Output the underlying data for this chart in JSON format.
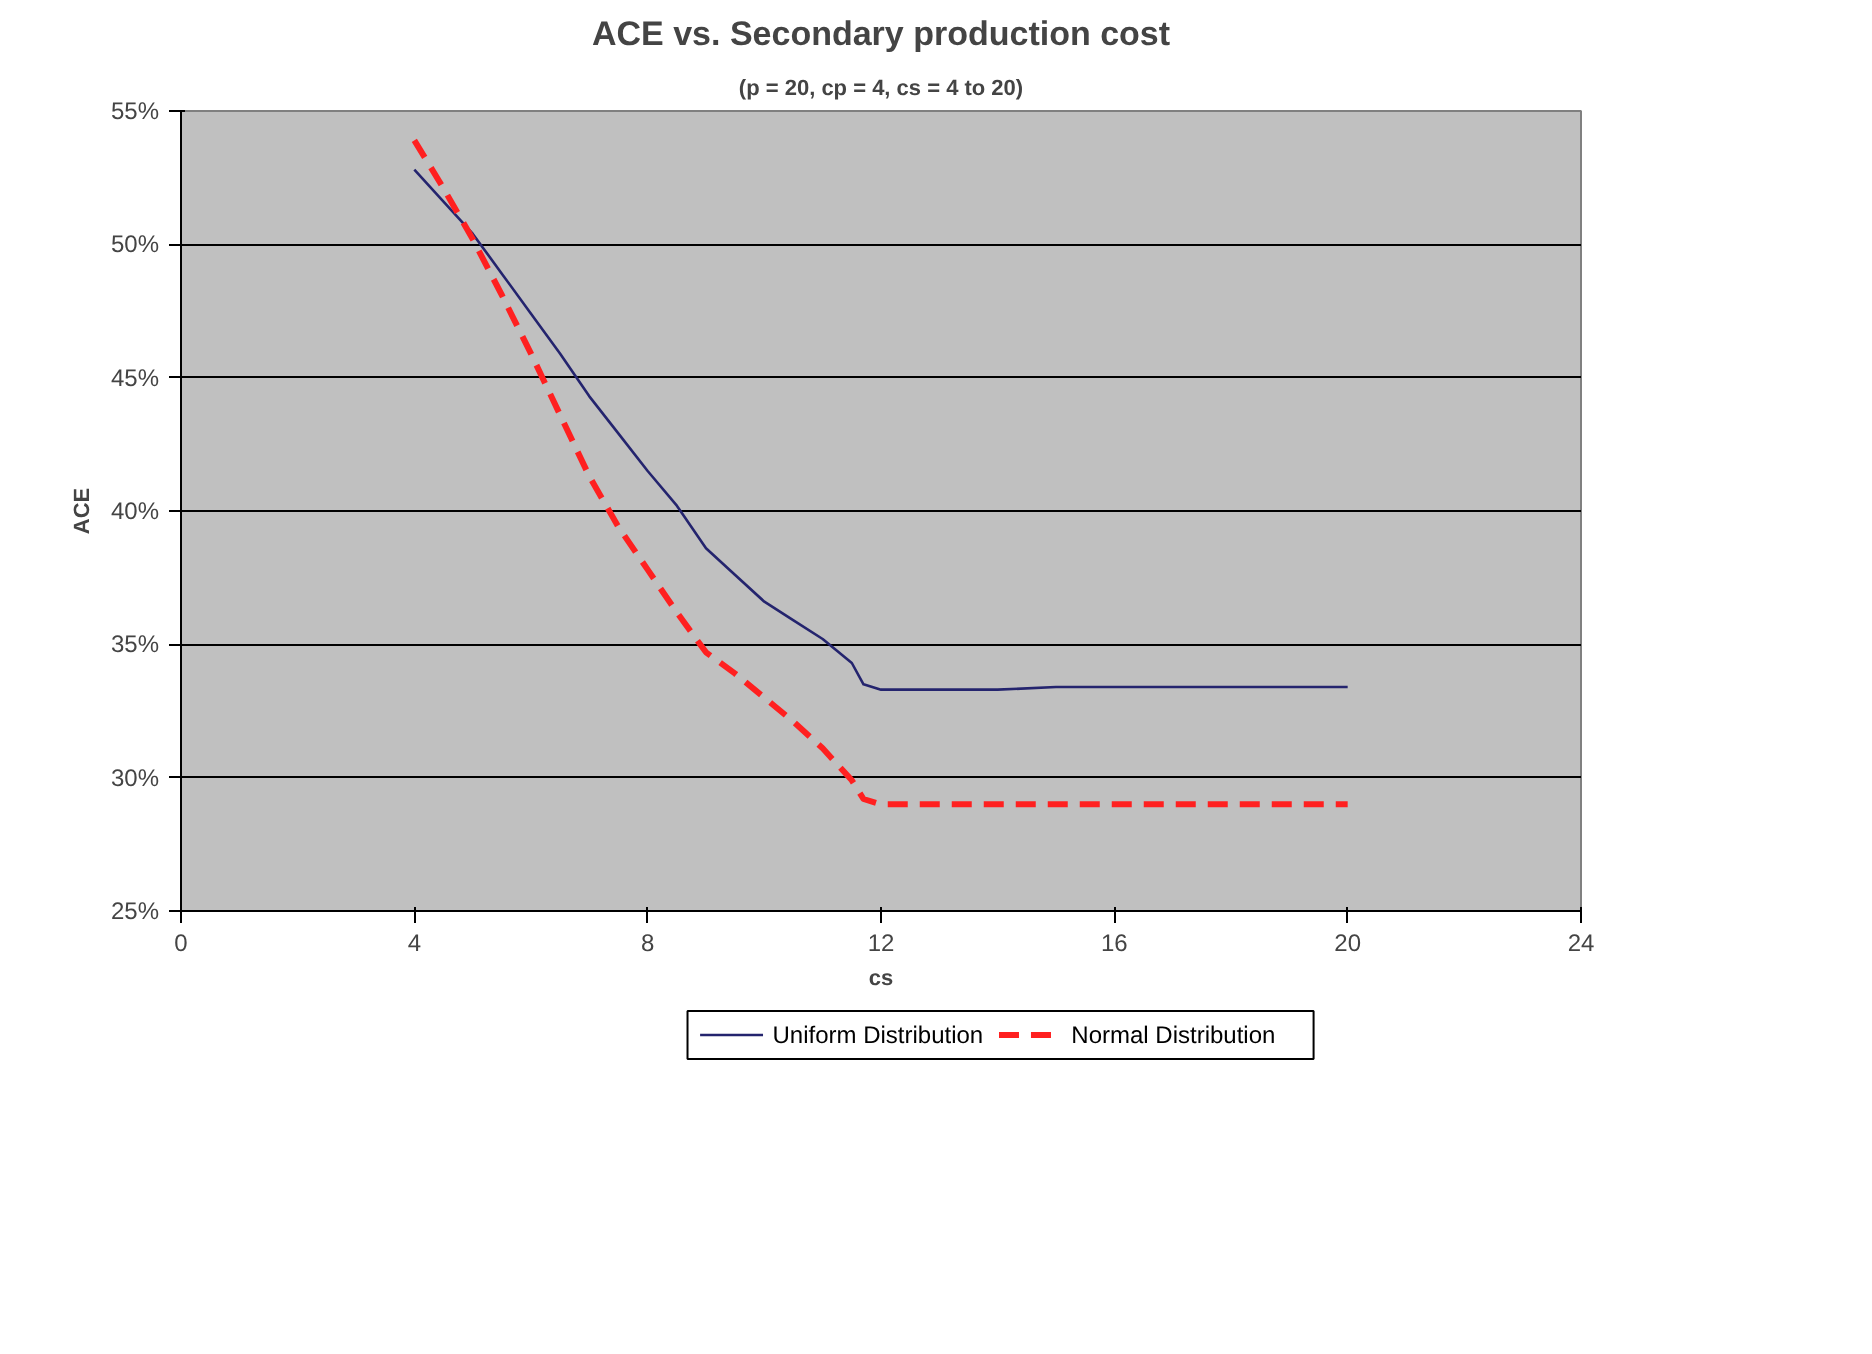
{
  "chart_data": {
    "type": "line",
    "title": "ACE vs. Secondary production cost",
    "subtitle": "(p = 20, cp = 4, cs = 4 to 20)",
    "xlabel": "cs",
    "ylabel": "ACE",
    "xlim": [
      0,
      24
    ],
    "xticks": [
      0,
      4,
      8,
      12,
      16,
      20,
      24
    ],
    "ylim": [
      25,
      55
    ],
    "yticks": [
      {
        "value": 25,
        "label": "25%"
      },
      {
        "value": 30,
        "label": "30%"
      },
      {
        "value": 35,
        "label": "35%"
      },
      {
        "value": 40,
        "label": "40%"
      },
      {
        "value": 45,
        "label": "45%"
      },
      {
        "value": 50,
        "label": "50%"
      },
      {
        "value": 55,
        "label": "55%"
      }
    ],
    "grid": "y",
    "legend": "bottom",
    "series": [
      {
        "name": "Uniform Distribution",
        "color": "#24246e",
        "line_style": "solid",
        "x": [
          4,
          4.5,
          5,
          5.5,
          6,
          6.5,
          7,
          7.5,
          8,
          8.5,
          9,
          9.5,
          10,
          10.5,
          11,
          11.5,
          11.7,
          12,
          13,
          14,
          15,
          16,
          18,
          20
        ],
        "values": [
          52.8,
          51.6,
          50.4,
          48.9,
          47.4,
          45.9,
          44.3,
          42.9,
          41.5,
          40.2,
          38.6,
          37.6,
          36.6,
          35.9,
          35.2,
          34.3,
          33.5,
          33.3,
          33.3,
          33.3,
          33.4,
          33.4,
          33.4,
          33.4
        ]
      },
      {
        "name": "Normal Distribution",
        "color": "#ff2020",
        "line_style": "dashed",
        "x": [
          4,
          4.5,
          5,
          5.5,
          6,
          6.5,
          7,
          7.5,
          8,
          8.5,
          9,
          9.5,
          10,
          10.5,
          11,
          11.5,
          11.7,
          12,
          13,
          14,
          16,
          18,
          20
        ],
        "values": [
          53.9,
          52.1,
          50.2,
          48.1,
          45.9,
          43.6,
          41.3,
          39.4,
          37.8,
          36.2,
          34.7,
          33.9,
          33.0,
          32.1,
          31.1,
          29.9,
          29.2,
          29.0,
          29.0,
          29.0,
          29.0,
          29.0,
          29.0
        ]
      }
    ]
  }
}
